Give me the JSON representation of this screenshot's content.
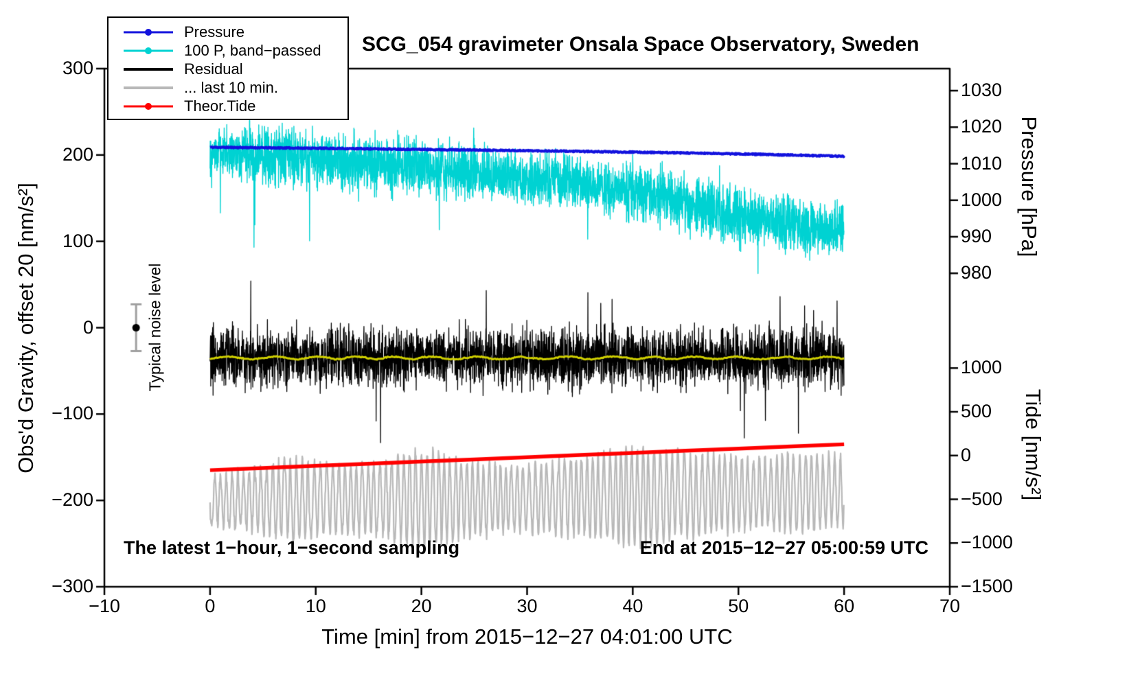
{
  "chart_data": {
    "type": "line",
    "title": "SCG_054 gravimeter Onsala Space Observatory, Sweden",
    "grid": false,
    "legend_position": "top-left",
    "axes": {
      "x": {
        "label": "Time [min] from 2015−12−27 04:01:00 UTC",
        "min": -10,
        "max": 70,
        "ticks": [
          -10,
          0,
          10,
          20,
          30,
          40,
          50,
          60,
          70
        ]
      },
      "y_left": {
        "label": "Obs'd Gravity, offset 20 [nm/s²]",
        "min": -300,
        "max": 300,
        "ticks": [
          -300,
          -200,
          -100,
          0,
          100,
          200,
          300
        ]
      },
      "y_right_pressure": {
        "label": "Pressure [hPa]",
        "ticks": [
          1030,
          1020,
          1010,
          1000,
          990,
          980
        ],
        "map": {
          "min": 980,
          "gravity_at_min": 63,
          "gravity_per_unit": 4.23
        }
      },
      "y_right_tide": {
        "label": "Tide [nm/s²]",
        "ticks": [
          1000,
          500,
          0,
          -500,
          -1000,
          -1500
        ],
        "map": {
          "min": -1500,
          "gravity_at_min": -300,
          "gravity_per_unit": 0.1013
        }
      }
    },
    "legend": {
      "items": [
        {
          "label": "Pressure",
          "color": "#1212dd",
          "dot": true,
          "lw": 3
        },
        {
          "label": "100 P, band−passed",
          "color": "#00d2d2",
          "dot": true,
          "lw": 3
        },
        {
          "label": "Residual",
          "color": "#000000",
          "dot": false,
          "lw": 4
        },
        {
          "label": "... last 10 min.",
          "color": "#b8b8b8",
          "dot": false,
          "lw": 4
        },
        {
          "label": "Theor.Tide",
          "color": "#ff0000",
          "dot": true,
          "lw": 3
        }
      ]
    },
    "annotations": {
      "noise_label": "Typical noise level",
      "sampling_note": "The latest 1−hour, 1−second sampling",
      "end_note": "End at 2015−12−27 05:00:59 UTC"
    },
    "noise_marker": {
      "x": -7,
      "g": 0,
      "err": 27,
      "color": "#000000",
      "bar_color": "#a0a0a0"
    },
    "series": [
      {
        "name": "100 P, band−passed",
        "color": "#00d2d2",
        "lw": 1.4,
        "step": 0.0167,
        "seed": 22,
        "x": [
          0,
          5,
          10,
          15,
          20,
          25,
          30,
          35,
          40,
          45,
          50,
          55,
          60
        ],
        "y": [
          204,
          199,
          195,
          190,
          186,
          180,
          174,
          168,
          157,
          143,
          130,
          120,
          112
        ],
        "noise": {
          "type": "gauss",
          "amp_x": [
            0,
            5,
            15,
            30,
            45,
            60
          ],
          "amp_y": [
            22,
            31,
            29,
            27,
            31,
            27
          ],
          "spike_prob": 0.004,
          "spike_scale": 2.8,
          "spike_bias": 0.75
        }
      },
      {
        "name": "Pressure",
        "color": "#1212dd",
        "lw": 4,
        "step": 0.05,
        "seed": 11,
        "x": [
          0,
          10,
          20,
          30,
          40,
          50,
          60
        ],
        "y": [
          209,
          207.8,
          206.5,
          205,
          203.3,
          201.3,
          198.5
        ],
        "noise": {
          "type": "uniform",
          "amp": 0.7
        }
      },
      {
        "name": "Residual",
        "color": "#000000",
        "lw": 1.3,
        "step": 0.0167,
        "seed": 33,
        "x": [
          0,
          60
        ],
        "y": [
          -35,
          -35
        ],
        "noise": {
          "type": "gauss",
          "amp": 30,
          "spike_prob": 0.005,
          "spike_scale": 1.8,
          "spike_bias": 0.6
        }
      },
      {
        "name": "Residual smoothed",
        "color": "#cfcf00",
        "lw": 3,
        "step": 0.1,
        "seed": 44,
        "x": [
          0,
          60
        ],
        "y": [
          -35,
          -35
        ],
        "noise": {
          "type": "osc",
          "period": 4,
          "amp": 1.5,
          "jitter": 0.6
        }
      },
      {
        "name": "... last 10 min.",
        "color": "#b8b8b8",
        "lw": 2.2,
        "step": 0.0333,
        "seed": 55,
        "x": [
          0,
          15,
          30,
          45,
          60
        ],
        "y": [
          -200,
          -199,
          -198,
          -194,
          -189
        ],
        "noise": {
          "type": "osc",
          "period": 0.55,
          "amp_x": [
            0,
            4,
            8,
            12,
            16,
            20,
            24,
            28,
            32,
            36,
            40,
            44,
            48,
            52,
            56,
            60
          ],
          "amp_y": [
            28,
            35,
            48,
            38,
            40,
            58,
            45,
            38,
            40,
            46,
            58,
            50,
            44,
            40,
            46,
            40
          ],
          "jitter": 6
        }
      },
      {
        "name": "Theor.Tide",
        "color": "#ff0000",
        "lw": 5.5,
        "step": 5,
        "seed": 66,
        "x": [
          0,
          60
        ],
        "y": [
          -165,
          -135
        ],
        "noise": null
      }
    ]
  }
}
